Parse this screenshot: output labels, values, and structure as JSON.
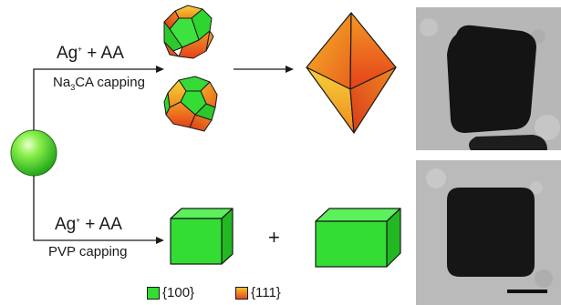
{
  "top_route": {
    "reagent_ion": "Ag",
    "reagent_charge": "+",
    "reagent_rest": " + AA",
    "capping_prefix": "Na",
    "capping_sub": "3",
    "capping_suffix": "CA capping"
  },
  "bottom_route": {
    "reagent_ion": "Ag",
    "reagent_charge": "+",
    "reagent_rest": " + AA",
    "capping": "PVP capping"
  },
  "plus_sign": "+",
  "legend": {
    "facet_100": "{100}",
    "facet_111": "{111}"
  },
  "colors": {
    "facet_100_green": "#33dd33",
    "facet_111_orange": "#f08020",
    "seed_green": "#66ee33",
    "tem_background": "#b9b9b9",
    "tem_particle": "#1a1a1a"
  }
}
